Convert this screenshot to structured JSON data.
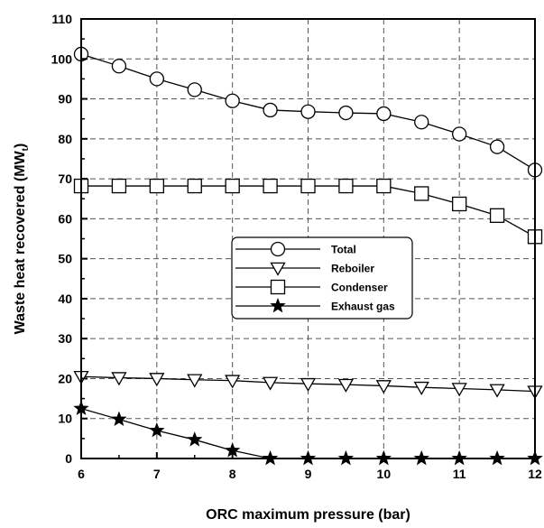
{
  "chart_data": {
    "type": "line",
    "xlabel": "ORC maximum pressure (bar)",
    "ylabel_main": "Waste heat recovered (MW",
    "ylabel_sub": "t",
    "ylabel_end": ")",
    "xlim": [
      6,
      12
    ],
    "ylim": [
      0,
      110
    ],
    "xticks": [
      6,
      7,
      8,
      9,
      10,
      11,
      12
    ],
    "yticks": [
      0,
      10,
      20,
      30,
      40,
      50,
      60,
      70,
      80,
      90,
      100,
      110
    ],
    "grid": true,
    "legend": "center",
    "x": [
      6,
      6.5,
      7,
      7.5,
      8,
      8.5,
      9,
      9.5,
      10,
      10.5,
      11,
      11.5,
      12
    ],
    "series": [
      {
        "name": "Total",
        "marker": "circle",
        "values": [
          101.2,
          98.2,
          95.0,
          92.3,
          89.5,
          87.2,
          86.8,
          86.5,
          86.3,
          84.2,
          81.2,
          78.0,
          72.2
        ]
      },
      {
        "name": "Reboiler",
        "marker": "triangle-down",
        "values": [
          20.5,
          20.2,
          20.0,
          19.7,
          19.5,
          19.0,
          18.7,
          18.5,
          18.2,
          17.8,
          17.5,
          17.2,
          16.8
        ]
      },
      {
        "name": "Condenser",
        "marker": "square",
        "values": [
          68.2,
          68.2,
          68.2,
          68.2,
          68.2,
          68.2,
          68.2,
          68.2,
          68.2,
          66.3,
          63.7,
          60.8,
          55.5
        ]
      },
      {
        "name": "Exhaust gas",
        "marker": "star",
        "values": [
          12.5,
          9.8,
          7.0,
          4.7,
          2.0,
          0,
          0,
          0,
          0,
          0,
          0,
          0,
          0
        ]
      }
    ]
  }
}
